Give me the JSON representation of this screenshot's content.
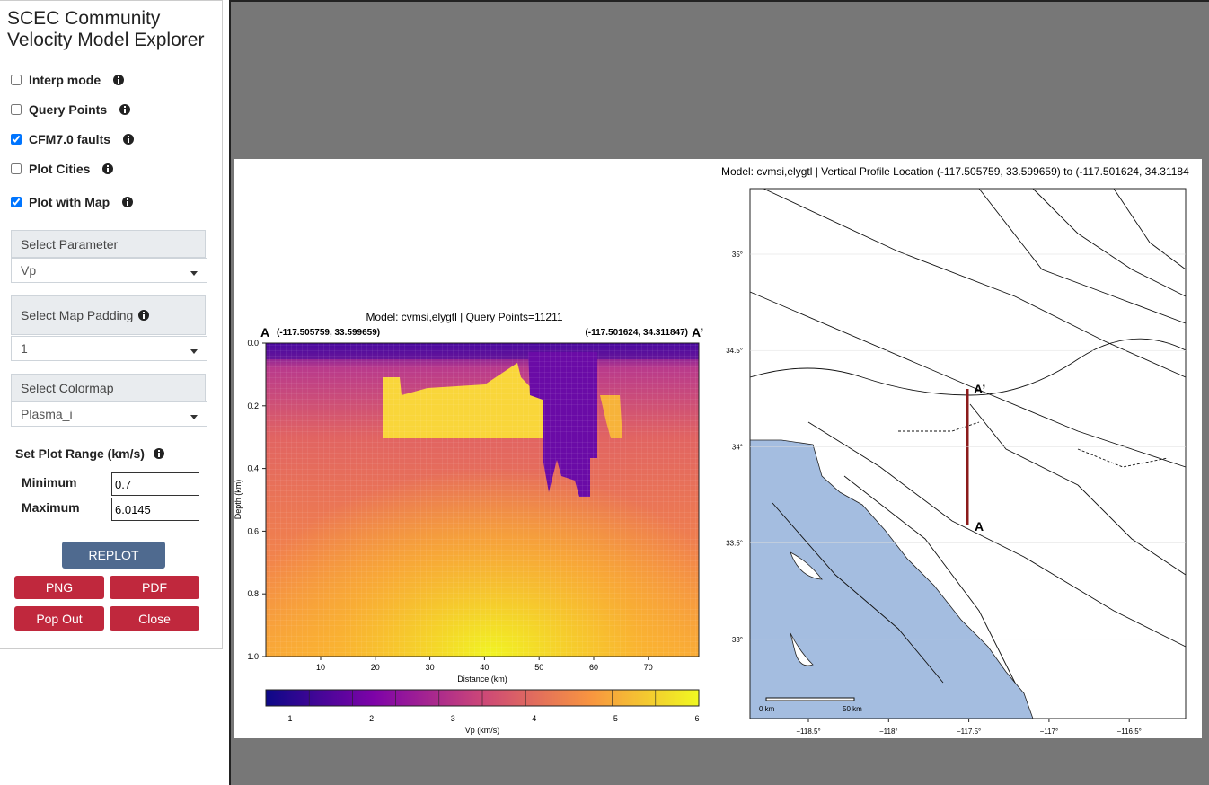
{
  "sidebar": {
    "title": "SCEC Community Velocity Model Explorer",
    "options": [
      {
        "label": "Interp mode",
        "checked": false
      },
      {
        "label": "Query Points",
        "checked": false
      },
      {
        "label": "CFM7.0 faults",
        "checked": true
      },
      {
        "label": "Plot Cities",
        "checked": false
      },
      {
        "label": "Plot with Map",
        "checked": true
      }
    ],
    "selects": [
      {
        "label": "Select Parameter",
        "value": "Vp"
      },
      {
        "label": "Select Map Padding",
        "value": "1"
      },
      {
        "label": "Select Colormap",
        "value": "Plasma_i"
      }
    ],
    "plot_range": {
      "label": "Set Plot Range (km/s)",
      "min_label": "Minimum",
      "min_value": "0.7",
      "max_label": "Maximum",
      "max_value": "6.0145"
    },
    "buttons": {
      "replot": "REPLOT",
      "png": "PNG",
      "pdf": "PDF",
      "popout": "Pop Out",
      "close": "Close"
    }
  },
  "cross_section": {
    "title": "Model: cvmsi,elygtl | Query Points=11211",
    "label_a": "A",
    "label_a_prime": "A’",
    "coord_a": "(-117.505759, 33.599659)",
    "coord_b": "(-117.501624, 34.311847)",
    "ylabel": "Depth (km)",
    "yticks": [
      "0.0",
      "0.2",
      "0.4",
      "0.6",
      "0.8",
      "1.0"
    ],
    "xlabel": "Distance (km)",
    "xticks": [
      "10",
      "20",
      "30",
      "40",
      "50",
      "60",
      "70"
    ],
    "colorbar_ticks": [
      "1",
      "2",
      "3",
      "4",
      "5",
      "6"
    ],
    "colorbar_label": "Vp (km/s)"
  },
  "map": {
    "title": "Model: cvmsi,elygtl | Vertical Profile Location (-117.505759, 33.599659) to (-117.501624, 34.31184",
    "lat_labels": [
      "35°",
      "34.5°",
      "34°",
      "33.5°",
      "33°"
    ],
    "lon_labels": [
      "−118.5°",
      "−118°",
      "−117.5°",
      "−117°",
      "−116.5°"
    ],
    "scale_start": "0 km",
    "scale_end": "50 km",
    "label_a": "A",
    "label_a_prime": "A’"
  }
}
